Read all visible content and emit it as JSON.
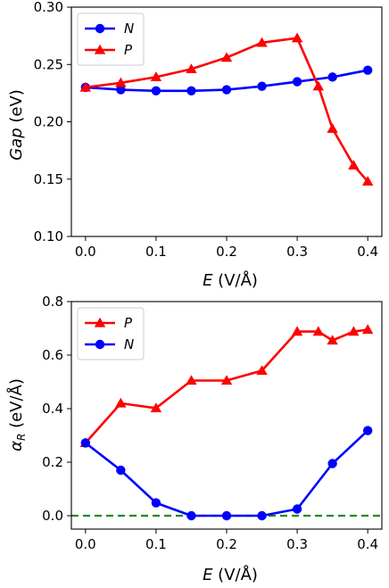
{
  "chart_data": [
    {
      "type": "line",
      "xlabel_var": "E",
      "xlabel_unit": " (V/Å)",
      "ylabel_var": "Gap",
      "ylabel_unit": " (eV)",
      "xlim": [
        -0.02,
        0.42
      ],
      "ylim": [
        0.1,
        0.3
      ],
      "xticks": [
        "0.0",
        "0.1",
        "0.2",
        "0.3",
        "0.4"
      ],
      "yticks": [
        "0.10",
        "0.15",
        "0.20",
        "0.25",
        "0.30"
      ],
      "legend_position": "top-left",
      "series": [
        {
          "name": "N",
          "color": "#0000ff",
          "marker": "circle",
          "x": [
            0.0,
            0.05,
            0.1,
            0.15,
            0.2,
            0.25,
            0.3,
            0.35,
            0.4
          ],
          "y": [
            0.23,
            0.228,
            0.227,
            0.227,
            0.228,
            0.231,
            0.235,
            0.239,
            0.245
          ]
        },
        {
          "name": "P",
          "color": "#ff0000",
          "marker": "triangle",
          "x": [
            0.0,
            0.05,
            0.1,
            0.15,
            0.2,
            0.25,
            0.3,
            0.33,
            0.35,
            0.38,
            0.4
          ],
          "y": [
            0.23,
            0.234,
            0.239,
            0.246,
            0.256,
            0.269,
            0.273,
            0.231,
            0.194,
            0.162,
            0.148
          ]
        }
      ]
    },
    {
      "type": "line",
      "xlabel_var": "E",
      "xlabel_unit": " (V/Å)",
      "ylabel_var": "α",
      "ylabel_sub": "R",
      "ylabel_unit": " (eV/Å)",
      "xlim": [
        -0.02,
        0.42
      ],
      "ylim": [
        -0.05,
        0.8
      ],
      "xticks": [
        "0.0",
        "0.1",
        "0.2",
        "0.3",
        "0.4"
      ],
      "yticks": [
        "0.0",
        "0.2",
        "0.4",
        "0.6",
        "0.8"
      ],
      "legend_position": "top-left",
      "reference_line": {
        "y": 0.0,
        "color": "#228B22",
        "style": "dashed"
      },
      "series": [
        {
          "name": "P",
          "color": "#ff0000",
          "marker": "triangle",
          "x": [
            0.0,
            0.05,
            0.1,
            0.15,
            0.2,
            0.25,
            0.3,
            0.33,
            0.35,
            0.38,
            0.4
          ],
          "y": [
            0.272,
            0.42,
            0.402,
            0.505,
            0.505,
            0.542,
            0.688,
            0.688,
            0.655,
            0.688,
            0.695
          ]
        },
        {
          "name": "N",
          "color": "#0000ff",
          "marker": "circle",
          "x": [
            0.0,
            0.05,
            0.1,
            0.15,
            0.2,
            0.25,
            0.3,
            0.35,
            0.4
          ],
          "y": [
            0.272,
            0.17,
            0.048,
            0.0,
            0.0,
            0.0,
            0.025,
            0.195,
            0.318
          ]
        }
      ]
    }
  ]
}
